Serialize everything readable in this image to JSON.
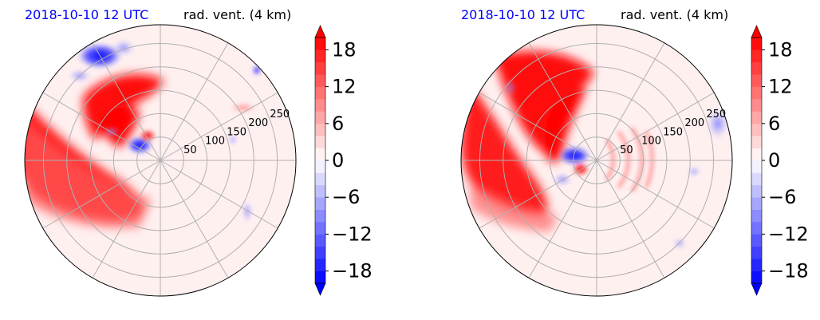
{
  "colors": {
    "positive": "#ff0000",
    "negative": "#0000ff",
    "near_zero": "#ffffff",
    "background_tint": "#fff1f1",
    "grid": "#b0b0b0",
    "date_text": "#0000ff"
  },
  "chart_data": [
    {
      "type": "heatmap",
      "projection": "polar",
      "panel": "left",
      "date_title": "2018-10-10 12 UTC",
      "variable_title": "rad. vent. (4 km)",
      "radial_tick_labels": [
        "50",
        "100",
        "150",
        "200",
        "250"
      ],
      "radial_ticks": [
        50,
        100,
        150,
        200,
        250
      ],
      "radial_max": 290,
      "angular_gridlines_deg": [
        0,
        30,
        60,
        90,
        120,
        150,
        180,
        210,
        240,
        270,
        300,
        330
      ],
      "colorbar": {
        "levels_min": -20,
        "levels_max": 20,
        "level_step": 2,
        "ticks": [
          -18,
          -12,
          -6,
          0,
          6,
          12,
          18
        ],
        "tick_labels": [
          "−18",
          "−12",
          "−6",
          "0",
          "6",
          "12",
          "18"
        ],
        "extend": "both"
      },
      "features": [
        {
          "region": "west band",
          "sign": "positive",
          "peak": 18
        },
        {
          "region": "north-west arc near centre",
          "sign": "positive",
          "peak": 18
        },
        {
          "region": "north-north-west",
          "sign": "negative",
          "peak": -10
        },
        {
          "region": "near centre west",
          "sign": "negative",
          "peak": -18
        },
        {
          "region": "east-north-east",
          "sign": "positive",
          "peak": 10
        },
        {
          "region": "south-east",
          "sign": "negative",
          "peak": -8
        }
      ]
    },
    {
      "type": "heatmap",
      "projection": "polar",
      "panel": "right",
      "date_title": "2018-10-10 12 UTC",
      "variable_title": "rad. vent. (4 km)",
      "radial_tick_labels": [
        "50",
        "100",
        "150",
        "200",
        "250"
      ],
      "radial_ticks": [
        50,
        100,
        150,
        200,
        250
      ],
      "radial_max": 290,
      "angular_gridlines_deg": [
        0,
        30,
        60,
        90,
        120,
        150,
        180,
        210,
        240,
        270,
        300,
        330
      ],
      "colorbar": {
        "levels_min": -20,
        "levels_max": 20,
        "level_step": 2,
        "ticks": [
          -18,
          -12,
          -6,
          0,
          6,
          12,
          18
        ],
        "tick_labels": [
          "−18",
          "−12",
          "−6",
          "0",
          "6",
          "12",
          "18"
        ],
        "extend": "both"
      },
      "features": [
        {
          "region": "west band",
          "sign": "positive",
          "peak": 18
        },
        {
          "region": "north-west arc",
          "sign": "positive",
          "peak": 18
        },
        {
          "region": "centre",
          "sign": "negative",
          "peak": -18
        },
        {
          "region": "centre south",
          "sign": "positive",
          "peak": 18
        },
        {
          "region": "east rings",
          "sign": "positive",
          "peak": 10
        },
        {
          "region": "east-north-east",
          "sign": "negative",
          "peak": -10
        }
      ]
    }
  ]
}
